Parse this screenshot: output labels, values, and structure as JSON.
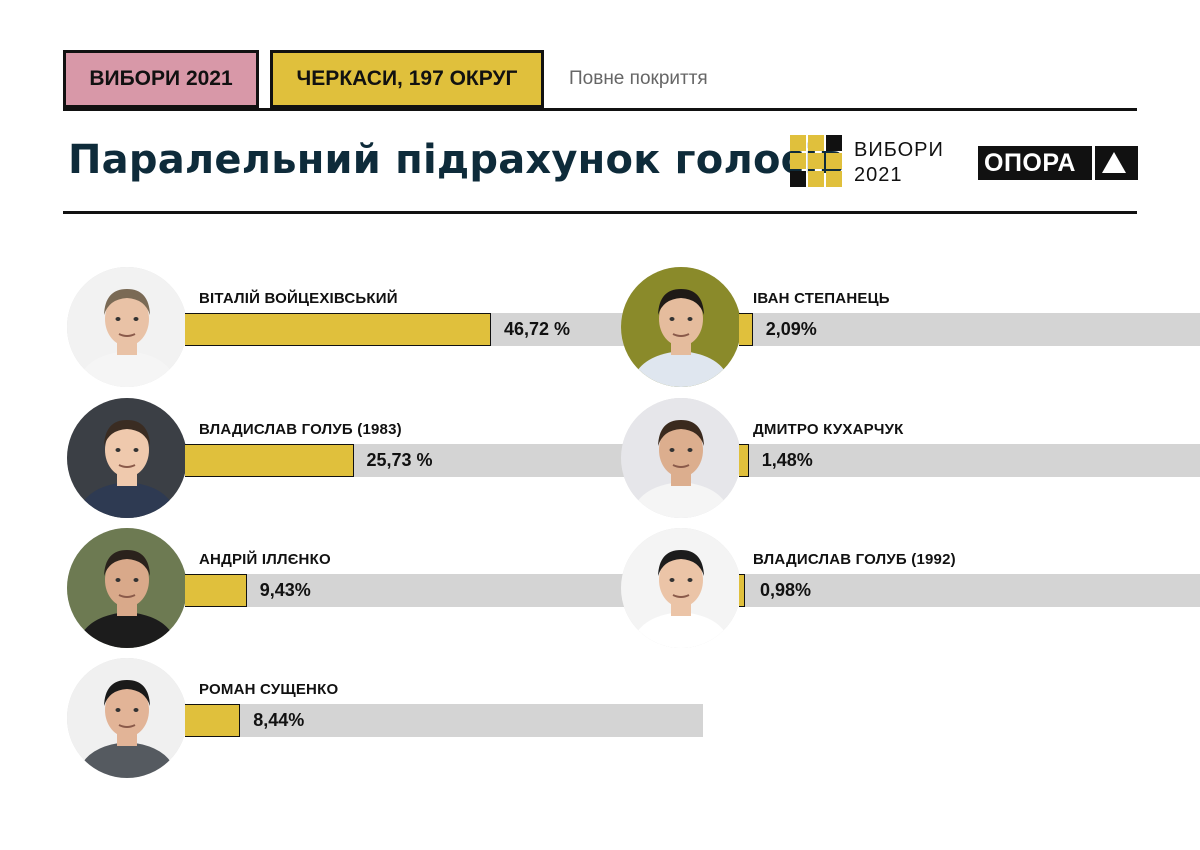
{
  "header": {
    "tag_elections": "ВИБОРИ 2021",
    "tag_district": "ЧЕРКАСИ, 197 ОКРУГ",
    "coverage": "Повне покриття",
    "title": "Паралельний підрахунок голосів",
    "logo_vybory_line1": "ВИБОРИ",
    "logo_vybory_line2": "2021",
    "logo_opora": "ОПОРА"
  },
  "colors": {
    "accent_yellow": "#e0c03c",
    "accent_pink": "#d898a8",
    "bar_track": "#d4d4d4",
    "title": "#0e2b3a"
  },
  "chart_data": {
    "type": "bar",
    "title": "Паралельний підрахунок голосів",
    "unit": "%",
    "categories": [
      "ВІТАЛІЙ ВОЙЦЕХІВСЬКИЙ",
      "ВЛАДИСЛАВ ГОЛУБ (1983)",
      "АНДРІЙ ІЛЛЄНКО",
      "РОМАН СУЩЕНКО",
      "ІВАН СТЕПАНЕЦЬ",
      "ДМИТРО КУХАРЧУК",
      "ВЛАДИСЛАВ ГОЛУБ (1992)"
    ],
    "values": [
      46.72,
      25.73,
      9.43,
      8.44,
      2.09,
      1.48,
      0.98
    ],
    "labels": [
      "46,72 %",
      "25,73 %",
      "9,43%",
      "8,44%",
      "2,09%",
      "1,48%",
      "0,98%"
    ]
  }
}
